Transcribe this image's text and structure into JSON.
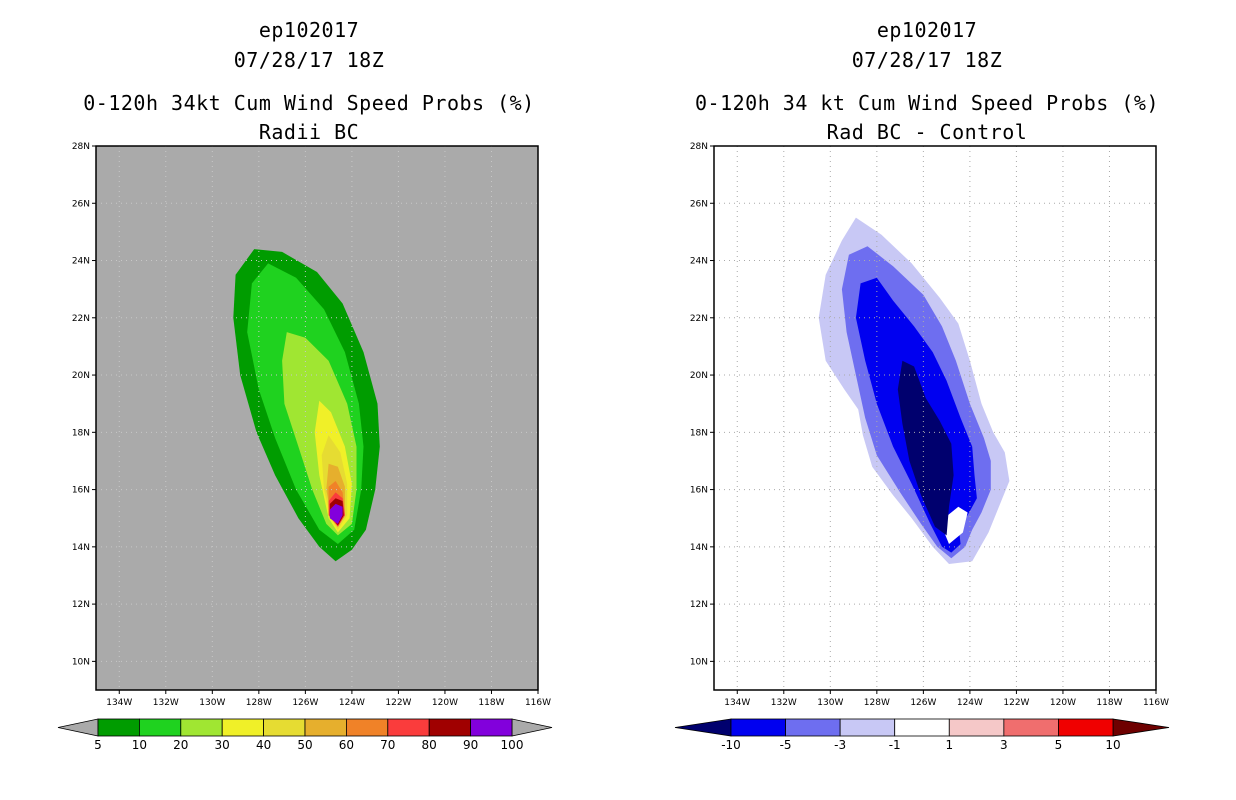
{
  "left_panel": {
    "title_lines": [
      "ep102017",
      "07/28/17 18Z",
      "0-120h 34kt Cum Wind Speed Probs (%)",
      "Radii BC"
    ]
  },
  "right_panel": {
    "title_lines": [
      "ep102017",
      "07/28/17 18Z",
      "0-120h 34 kt Cum Wind Speed Probs (%)",
      "Rad BC - Control"
    ]
  },
  "chart_data": [
    {
      "type": "heatmap",
      "title": "0-120h 34kt Cum Wind Speed Probs (%)",
      "subtitle": "Radii BC",
      "storm": "ep102017",
      "datetime": "07/28/17 18Z",
      "xlim": [
        -135,
        -116
      ],
      "ylim": [
        9,
        28
      ],
      "x_ticks": [
        -134,
        -132,
        -130,
        -128,
        -126,
        -124,
        -122,
        -120,
        -118,
        -116
      ],
      "x_tick_labels": [
        "134W",
        "132W",
        "130W",
        "128W",
        "126W",
        "124W",
        "122W",
        "120W",
        "118W",
        "116W"
      ],
      "y_ticks": [
        10,
        12,
        14,
        16,
        18,
        20,
        22,
        24,
        26,
        28
      ],
      "y_tick_labels": [
        "10N",
        "12N",
        "14N",
        "16N",
        "18N",
        "20N",
        "22N",
        "24N",
        "26N",
        "28N"
      ],
      "background_color": "#aaaaaa",
      "colorbar": {
        "labels": [
          "5",
          "10",
          "20",
          "30",
          "40",
          "50",
          "60",
          "70",
          "80",
          "90",
          "100"
        ],
        "colors": [
          "#009c00",
          "#1fd21f",
          "#a0e632",
          "#f0f028",
          "#e6dc32",
          "#e6af2d",
          "#f08228",
          "#fa3c3c",
          "#a00000",
          "#8200dc"
        ],
        "under_color": "#aaaaaa",
        "over_color": "#aaaaaa"
      },
      "contours": [
        {
          "level": "5-10",
          "color": "#009c00",
          "polygon": [
            [
              -124.7,
              13.5
            ],
            [
              -124,
              13.9
            ],
            [
              -123.4,
              14.6
            ],
            [
              -123,
              16
            ],
            [
              -122.8,
              17.5
            ],
            [
              -122.9,
              19
            ],
            [
              -123.5,
              20.8
            ],
            [
              -124.4,
              22.5
            ],
            [
              -125.5,
              23.6
            ],
            [
              -127,
              24.3
            ],
            [
              -128.2,
              24.4
            ],
            [
              -129,
              23.5
            ],
            [
              -129.1,
              22
            ],
            [
              -128.8,
              20
            ],
            [
              -128.1,
              18
            ],
            [
              -127.3,
              16.5
            ],
            [
              -126.3,
              15
            ],
            [
              -125.4,
              14
            ]
          ]
        },
        {
          "level": "10-20",
          "color": "#1fd21f",
          "polygon": [
            [
              -124.6,
              14.1
            ],
            [
              -123.9,
              14.6
            ],
            [
              -123.6,
              16
            ],
            [
              -123.5,
              17.5
            ],
            [
              -123.7,
              19
            ],
            [
              -124.3,
              20.8
            ],
            [
              -125.2,
              22.3
            ],
            [
              -126.4,
              23.4
            ],
            [
              -127.6,
              23.9
            ],
            [
              -128.3,
              23.2
            ],
            [
              -128.5,
              21.5
            ],
            [
              -128,
              19.5
            ],
            [
              -127.3,
              17.8
            ],
            [
              -126.4,
              16
            ],
            [
              -125.4,
              14.6
            ]
          ]
        },
        {
          "level": "20-30",
          "color": "#a0e632",
          "polygon": [
            [
              -124.6,
              14.4
            ],
            [
              -124,
              14.8
            ],
            [
              -123.8,
              16
            ],
            [
              -123.8,
              17.5
            ],
            [
              -124.2,
              19
            ],
            [
              -125,
              20.5
            ],
            [
              -126,
              21.3
            ],
            [
              -126.8,
              21.5
            ],
            [
              -127,
              20.5
            ],
            [
              -126.9,
              19
            ],
            [
              -126.3,
              17.5
            ],
            [
              -125.7,
              16
            ],
            [
              -125.1,
              14.8
            ]
          ]
        },
        {
          "level": "30-40",
          "color": "#f0f028",
          "polygon": [
            [
              -124.6,
              14.5
            ],
            [
              -124.1,
              15
            ],
            [
              -124,
              16.2
            ],
            [
              -124.3,
              17.5
            ],
            [
              -124.9,
              18.7
            ],
            [
              -125.4,
              19.1
            ],
            [
              -125.6,
              18
            ],
            [
              -125.4,
              16.5
            ],
            [
              -125,
              15
            ]
          ]
        },
        {
          "level": "40-50",
          "color": "#e6dc32",
          "polygon": [
            [
              -124.6,
              14.6
            ],
            [
              -124.2,
              15.1
            ],
            [
              -124.2,
              16.2
            ],
            [
              -124.5,
              17.3
            ],
            [
              -125,
              17.9
            ],
            [
              -125.3,
              17.2
            ],
            [
              -125.2,
              16
            ],
            [
              -124.9,
              15
            ]
          ]
        },
        {
          "level": "50-60",
          "color": "#e6af2d",
          "polygon": [
            [
              -124.6,
              14.7
            ],
            [
              -124.3,
              15.1
            ],
            [
              -124.3,
              16.1
            ],
            [
              -124.6,
              16.8
            ],
            [
              -125,
              16.9
            ],
            [
              -125.1,
              16
            ],
            [
              -124.9,
              15.1
            ]
          ]
        },
        {
          "level": "60-70",
          "color": "#f08228",
          "polygon": [
            [
              -124.6,
              14.7
            ],
            [
              -124.3,
              15.1
            ],
            [
              -124.4,
              15.9
            ],
            [
              -124.7,
              16.3
            ],
            [
              -125,
              16.1
            ],
            [
              -125,
              15.3
            ]
          ]
        },
        {
          "level": "70-80",
          "color": "#fa3c3c",
          "polygon": [
            [
              -124.6,
              14.7
            ],
            [
              -124.3,
              15.1
            ],
            [
              -124.4,
              15.7
            ],
            [
              -124.7,
              15.9
            ],
            [
              -125,
              15.6
            ],
            [
              -125,
              15.1
            ]
          ]
        },
        {
          "level": "80-90",
          "color": "#a00000",
          "polygon": [
            [
              -124.6,
              14.75
            ],
            [
              -124.35,
              15.1
            ],
            [
              -124.4,
              15.6
            ],
            [
              -124.7,
              15.7
            ],
            [
              -124.95,
              15.5
            ],
            [
              -124.95,
              15.1
            ]
          ]
        },
        {
          "level": "90-100",
          "color": "#8200dc",
          "polygon": [
            [
              -124.6,
              14.8
            ],
            [
              -124.4,
              15.1
            ],
            [
              -124.4,
              15.4
            ],
            [
              -124.7,
              15.5
            ],
            [
              -124.95,
              15.3
            ],
            [
              -124.95,
              15
            ]
          ]
        }
      ]
    },
    {
      "type": "heatmap",
      "title": "0-120h 34 kt Cum Wind Speed Probs (%)",
      "subtitle": "Rad BC - Control",
      "storm": "ep102017",
      "datetime": "07/28/17 18Z",
      "xlim": [
        -135,
        -116
      ],
      "ylim": [
        9,
        28
      ],
      "x_ticks": [
        -134,
        -132,
        -130,
        -128,
        -126,
        -124,
        -122,
        -120,
        -118,
        -116
      ],
      "x_tick_labels": [
        "134W",
        "132W",
        "130W",
        "128W",
        "126W",
        "124W",
        "122W",
        "120W",
        "118W",
        "116W"
      ],
      "y_ticks": [
        10,
        12,
        14,
        16,
        18,
        20,
        22,
        24,
        26,
        28
      ],
      "y_tick_labels": [
        "10N",
        "12N",
        "14N",
        "16N",
        "18N",
        "20N",
        "22N",
        "24N",
        "26N",
        "28N"
      ],
      "background_color": "#ffffff",
      "grid": true,
      "colorbar": {
        "labels": [
          "-10",
          "-5",
          "-3",
          "-1",
          "1",
          "3",
          "5",
          "10"
        ],
        "colors": [
          "#0000f0",
          "#6e6ef0",
          "#c8c8f5",
          "#ffffff",
          "#f5c8c8",
          "#f06e6e",
          "#f00000"
        ],
        "under_color": "#00006e",
        "over_color": "#6e0000"
      },
      "contours": [
        {
          "level": "-3 to -1",
          "color": "#c8c8f5",
          "polygon": [
            [
              -124.9,
              13.4
            ],
            [
              -123.9,
              13.5
            ],
            [
              -123.2,
              14.5
            ],
            [
              -122.7,
              15.5
            ],
            [
              -122.3,
              16.3
            ],
            [
              -122.5,
              17.3
            ],
            [
              -123,
              18
            ],
            [
              -123.5,
              19
            ],
            [
              -124,
              20.5
            ],
            [
              -124.5,
              21.8
            ],
            [
              -125.3,
              22.7
            ],
            [
              -126.5,
              23.9
            ],
            [
              -127.8,
              24.9
            ],
            [
              -128.9,
              25.5
            ],
            [
              -129.5,
              24.7
            ],
            [
              -130.2,
              23.5
            ],
            [
              -130.5,
              22
            ],
            [
              -130.2,
              20.5
            ],
            [
              -129.4,
              19.5
            ],
            [
              -128.8,
              18.8
            ],
            [
              -128.6,
              17.9
            ],
            [
              -128.2,
              16.8
            ],
            [
              -127.3,
              15.8
            ],
            [
              -126.5,
              15
            ],
            [
              -125.6,
              14
            ]
          ]
        },
        {
          "level": "-5 to -3",
          "color": "#6e6ef0",
          "polygon": [
            [
              -124.8,
              13.6
            ],
            [
              -124.2,
              14
            ],
            [
              -123.9,
              14.6
            ],
            [
              -123.5,
              15.2
            ],
            [
              -123.1,
              16
            ],
            [
              -123.1,
              17
            ],
            [
              -123.4,
              17.8
            ],
            [
              -124,
              19
            ],
            [
              -124.6,
              20.5
            ],
            [
              -125.2,
              21.7
            ],
            [
              -126,
              22.8
            ],
            [
              -127.3,
              23.8
            ],
            [
              -128.4,
              24.5
            ],
            [
              -129.2,
              24.2
            ],
            [
              -129.5,
              23
            ],
            [
              -129.3,
              21.5
            ],
            [
              -128.9,
              20
            ],
            [
              -128.5,
              18.5
            ],
            [
              -128,
              17.2
            ],
            [
              -127,
              15.9
            ],
            [
              -126.1,
              14.8
            ],
            [
              -125.4,
              14
            ]
          ]
        },
        {
          "level": "-10 to -5",
          "color": "#0000f0",
          "polygon": [
            [
              -124.8,
              13.8
            ],
            [
              -124.4,
              14.1
            ],
            [
              -124.5,
              14.8
            ],
            [
              -124.1,
              15.1
            ],
            [
              -123.7,
              15.7
            ],
            [
              -123.8,
              16.5
            ],
            [
              -123.9,
              17.5
            ],
            [
              -124.4,
              18.5
            ],
            [
              -125,
              19.8
            ],
            [
              -125.6,
              20.8
            ],
            [
              -126.4,
              21.7
            ],
            [
              -127.3,
              22.6
            ],
            [
              -128,
              23.4
            ],
            [
              -128.7,
              23.2
            ],
            [
              -128.9,
              22
            ],
            [
              -128.5,
              20.5
            ],
            [
              -128,
              19
            ],
            [
              -127.3,
              17.5
            ],
            [
              -126.5,
              16.2
            ],
            [
              -125.7,
              14.8
            ],
            [
              -125.2,
              14
            ]
          ]
        },
        {
          "level": "-3 to -1 hole",
          "color": "#ffffff",
          "polygon": [
            [
              -124.9,
              14.1
            ],
            [
              -124.3,
              14.5
            ],
            [
              -124.1,
              15.2
            ],
            [
              -124.5,
              15.4
            ],
            [
              -124.95,
              15.1
            ],
            [
              -125.1,
              14.5
            ]
          ]
        },
        {
          "level": "< -10",
          "color": "#00006e",
          "polygon": [
            [
              -125.0,
              14.4
            ],
            [
              -124.9,
              15.4
            ],
            [
              -124.7,
              16.5
            ],
            [
              -124.8,
              17.6
            ],
            [
              -125.3,
              18.4
            ],
            [
              -125.9,
              19.2
            ],
            [
              -126.4,
              20.3
            ],
            [
              -126.9,
              20.5
            ],
            [
              -127.1,
              19.5
            ],
            [
              -126.9,
              18.3
            ],
            [
              -126.6,
              17
            ],
            [
              -126.1,
              15.8
            ],
            [
              -125.5,
              14.7
            ]
          ]
        }
      ]
    }
  ]
}
